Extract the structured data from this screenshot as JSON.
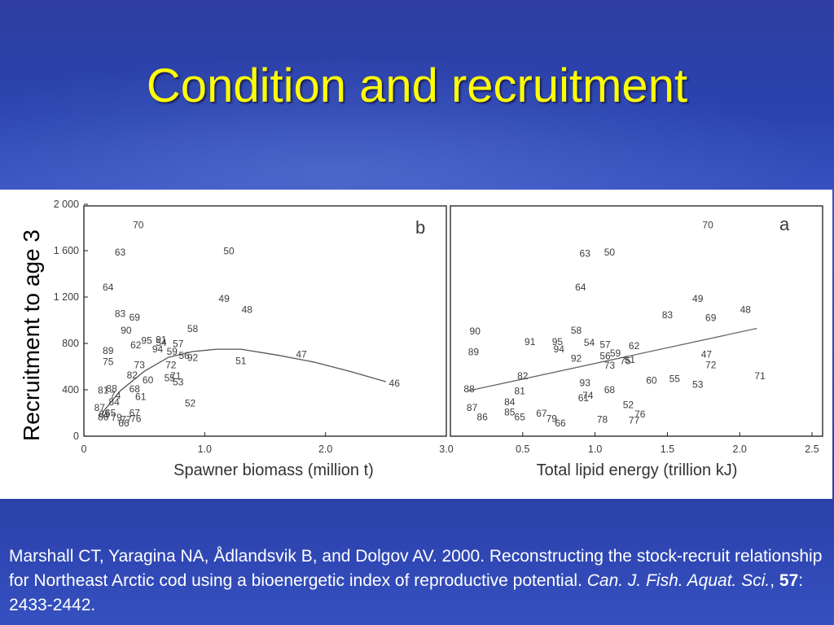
{
  "slide": {
    "title": "Condition and recruitment",
    "y_axis_title": "Recruitment to age 3",
    "citation": {
      "text_1": "Marshall CT, Yaragina NA, Ådlandsvik B, and Dolgov AV. 2000. Reconstructing the stock-recruit relationship for Northeast Arctic cod using a bioenergetic index of reproductive potential. ",
      "journal": "Can. J. Fish. Aquat. Sci.",
      "sep": ", ",
      "volume": "57",
      "pages": ": 2433-2442."
    }
  },
  "chart_data": [
    {
      "type": "scatter",
      "panel_label": "b",
      "xlabel": "Spawner biomass (million t)",
      "ylabel": "Recruitment to age 3",
      "xticks": [
        {
          "v": 0,
          "label": "0"
        },
        {
          "v": 1.0,
          "label": "1.0"
        },
        {
          "v": 2.0,
          "label": "2.0"
        },
        {
          "v": 3.0,
          "label": "3.0"
        }
      ],
      "yticks": [
        {
          "v": 0,
          "label": "0"
        },
        {
          "v": 400,
          "label": "400"
        },
        {
          "v": 800,
          "label": "800"
        },
        {
          "v": 1200,
          "label": "1 200"
        },
        {
          "v": 1600,
          "label": "1 600"
        },
        {
          "v": 2000,
          "label": "2 000"
        }
      ],
      "xlim": [
        0,
        3.0
      ],
      "ylim": [
        0,
        2000
      ],
      "points": [
        {
          "x": 0.45,
          "y": 1815,
          "label": "70"
        },
        {
          "x": 0.3,
          "y": 1580,
          "label": "63"
        },
        {
          "x": 1.2,
          "y": 1590,
          "label": "50"
        },
        {
          "x": 0.2,
          "y": 1280,
          "label": "64"
        },
        {
          "x": 0.3,
          "y": 1050,
          "label": "83"
        },
        {
          "x": 0.42,
          "y": 1020,
          "label": "69"
        },
        {
          "x": 1.16,
          "y": 1180,
          "label": "49"
        },
        {
          "x": 1.35,
          "y": 1085,
          "label": "48"
        },
        {
          "x": 0.35,
          "y": 905,
          "label": "90"
        },
        {
          "x": 0.9,
          "y": 920,
          "label": "58"
        },
        {
          "x": 0.52,
          "y": 820,
          "label": "95"
        },
        {
          "x": 0.64,
          "y": 825,
          "label": "91"
        },
        {
          "x": 0.43,
          "y": 780,
          "label": "62"
        },
        {
          "x": 0.64,
          "y": 800,
          "label": "54"
        },
        {
          "x": 0.78,
          "y": 790,
          "label": "57"
        },
        {
          "x": 0.61,
          "y": 745,
          "label": "94"
        },
        {
          "x": 0.73,
          "y": 725,
          "label": "59"
        },
        {
          "x": 0.83,
          "y": 690,
          "label": "56"
        },
        {
          "x": 0.9,
          "y": 670,
          "label": "92"
        },
        {
          "x": 0.2,
          "y": 730,
          "label": "89"
        },
        {
          "x": 0.2,
          "y": 635,
          "label": "75"
        },
        {
          "x": 0.46,
          "y": 610,
          "label": "73"
        },
        {
          "x": 0.72,
          "y": 610,
          "label": "72"
        },
        {
          "x": 1.8,
          "y": 700,
          "label": "47"
        },
        {
          "x": 1.3,
          "y": 645,
          "label": "51"
        },
        {
          "x": 0.4,
          "y": 520,
          "label": "82"
        },
        {
          "x": 0.53,
          "y": 480,
          "label": "60"
        },
        {
          "x": 0.71,
          "y": 495,
          "label": "55"
        },
        {
          "x": 0.76,
          "y": 515,
          "label": "71"
        },
        {
          "x": 0.78,
          "y": 460,
          "label": "53"
        },
        {
          "x": 0.42,
          "y": 400,
          "label": "68"
        },
        {
          "x": 0.16,
          "y": 390,
          "label": "81"
        },
        {
          "x": 0.23,
          "y": 405,
          "label": "88"
        },
        {
          "x": 0.26,
          "y": 345,
          "label": "74"
        },
        {
          "x": 0.47,
          "y": 335,
          "label": "61"
        },
        {
          "x": 0.25,
          "y": 290,
          "label": "84"
        },
        {
          "x": 2.57,
          "y": 450,
          "label": "46"
        },
        {
          "x": 0.88,
          "y": 280,
          "label": "52"
        },
        {
          "x": 0.13,
          "y": 240,
          "label": "87"
        },
        {
          "x": 0.17,
          "y": 185,
          "label": "85"
        },
        {
          "x": 0.22,
          "y": 195,
          "label": "65"
        },
        {
          "x": 0.27,
          "y": 155,
          "label": "79"
        },
        {
          "x": 0.42,
          "y": 195,
          "label": "67"
        },
        {
          "x": 0.43,
          "y": 145,
          "label": "76"
        },
        {
          "x": 0.16,
          "y": 160,
          "label": "86"
        },
        {
          "x": 0.35,
          "y": 140,
          "label": "77"
        },
        {
          "x": 0.33,
          "y": 105,
          "label": "66"
        }
      ],
      "curve": [
        {
          "x": 0.15,
          "y": 200
        },
        {
          "x": 0.3,
          "y": 390
        },
        {
          "x": 0.5,
          "y": 560
        },
        {
          "x": 0.7,
          "y": 680
        },
        {
          "x": 0.9,
          "y": 730
        },
        {
          "x": 1.1,
          "y": 750
        },
        {
          "x": 1.3,
          "y": 750
        },
        {
          "x": 1.6,
          "y": 700
        },
        {
          "x": 1.9,
          "y": 640
        },
        {
          "x": 2.2,
          "y": 560
        },
        {
          "x": 2.5,
          "y": 470
        }
      ]
    },
    {
      "type": "scatter",
      "panel_label": "a",
      "xlabel": "Total lipid energy (trillion kJ)",
      "ylabel": "Recruitment to age 3",
      "xticks": [
        {
          "v": 0.5,
          "label": "0.5"
        },
        {
          "v": 1.0,
          "label": "1.0"
        },
        {
          "v": 1.5,
          "label": "1.5"
        },
        {
          "v": 2.0,
          "label": "2.0"
        },
        {
          "v": 2.5,
          "label": "2.5"
        }
      ],
      "yticks": [
        {
          "v": 0,
          "label": "0"
        },
        {
          "v": 400,
          "label": "400"
        },
        {
          "v": 800,
          "label": "800"
        },
        {
          "v": 1200,
          "label": "1 200"
        },
        {
          "v": 1600,
          "label": "1 600"
        },
        {
          "v": 2000,
          "label": "2 000"
        }
      ],
      "xlim": [
        0,
        2.5
      ],
      "ylim": [
        0,
        2000
      ],
      "points": [
        {
          "x": 1.78,
          "y": 1815,
          "label": "70"
        },
        {
          "x": 0.93,
          "y": 1570,
          "label": "63"
        },
        {
          "x": 1.1,
          "y": 1580,
          "label": "50"
        },
        {
          "x": 0.9,
          "y": 1280,
          "label": "64"
        },
        {
          "x": 1.71,
          "y": 1180,
          "label": "49"
        },
        {
          "x": 2.04,
          "y": 1085,
          "label": "48"
        },
        {
          "x": 1.5,
          "y": 1040,
          "label": "83"
        },
        {
          "x": 1.8,
          "y": 1015,
          "label": "69"
        },
        {
          "x": 0.17,
          "y": 900,
          "label": "90"
        },
        {
          "x": 0.55,
          "y": 810,
          "label": "91"
        },
        {
          "x": 0.74,
          "y": 810,
          "label": "95"
        },
        {
          "x": 0.75,
          "y": 745,
          "label": "94"
        },
        {
          "x": 0.87,
          "y": 905,
          "label": "58"
        },
        {
          "x": 0.96,
          "y": 800,
          "label": "54"
        },
        {
          "x": 1.07,
          "y": 785,
          "label": "57"
        },
        {
          "x": 1.27,
          "y": 775,
          "label": "62"
        },
        {
          "x": 1.14,
          "y": 710,
          "label": "59"
        },
        {
          "x": 1.07,
          "y": 685,
          "label": "56"
        },
        {
          "x": 0.87,
          "y": 665,
          "label": "92"
        },
        {
          "x": 1.21,
          "y": 645,
          "label": "75"
        },
        {
          "x": 1.1,
          "y": 605,
          "label": "73"
        },
        {
          "x": 1.24,
          "y": 655,
          "label": "51"
        },
        {
          "x": 1.77,
          "y": 700,
          "label": "47"
        },
        {
          "x": 1.8,
          "y": 610,
          "label": "72"
        },
        {
          "x": 0.16,
          "y": 720,
          "label": "89"
        },
        {
          "x": 0.5,
          "y": 515,
          "label": "82"
        },
        {
          "x": 1.39,
          "y": 475,
          "label": "60"
        },
        {
          "x": 1.55,
          "y": 490,
          "label": "55"
        },
        {
          "x": 1.71,
          "y": 440,
          "label": "53"
        },
        {
          "x": 2.14,
          "y": 515,
          "label": "71"
        },
        {
          "x": 0.93,
          "y": 455,
          "label": "93"
        },
        {
          "x": 1.1,
          "y": 395,
          "label": "68"
        },
        {
          "x": 0.48,
          "y": 385,
          "label": "81"
        },
        {
          "x": 0.13,
          "y": 400,
          "label": "88"
        },
        {
          "x": 0.95,
          "y": 345,
          "label": "74"
        },
        {
          "x": 0.92,
          "y": 325,
          "label": "61"
        },
        {
          "x": 0.41,
          "y": 290,
          "label": "84"
        },
        {
          "x": 1.23,
          "y": 265,
          "label": "52"
        },
        {
          "x": 0.15,
          "y": 240,
          "label": "87"
        },
        {
          "x": 0.41,
          "y": 200,
          "label": "85"
        },
        {
          "x": 0.48,
          "y": 160,
          "label": "65"
        },
        {
          "x": 0.63,
          "y": 190,
          "label": "67"
        },
        {
          "x": 0.7,
          "y": 145,
          "label": "79"
        },
        {
          "x": 0.76,
          "y": 105,
          "label": "66"
        },
        {
          "x": 0.22,
          "y": 160,
          "label": "86"
        },
        {
          "x": 1.05,
          "y": 140,
          "label": "78"
        },
        {
          "x": 1.27,
          "y": 130,
          "label": "77"
        },
        {
          "x": 1.31,
          "y": 185,
          "label": "76"
        }
      ],
      "fit_line": [
        {
          "x": 0.12,
          "y": 390
        },
        {
          "x": 2.12,
          "y": 930
        }
      ]
    }
  ]
}
